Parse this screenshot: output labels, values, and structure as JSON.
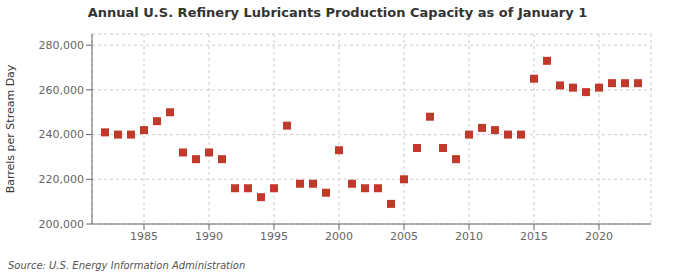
{
  "chart_data": {
    "type": "scatter",
    "title": "Annual U.S. Refinery Lubricants Production Capacity as of January 1",
    "ylabel": "Barrels per Stream Day",
    "annotations": [
      "Source: U.S. Energy Information Administration"
    ],
    "x": [
      1982,
      1983,
      1984,
      1985,
      1986,
      1987,
      1988,
      1989,
      1990,
      1991,
      1992,
      1993,
      1994,
      1995,
      1996,
      1997,
      1998,
      1999,
      2000,
      2001,
      2002,
      2003,
      2004,
      2005,
      2006,
      2007,
      2008,
      2009,
      2010,
      2011,
      2012,
      2013,
      2014,
      2015,
      2016,
      2017,
      2018,
      2019,
      2020,
      2021,
      2022,
      2023
    ],
    "values": [
      241000,
      240000,
      240000,
      242000,
      246000,
      250000,
      232000,
      229000,
      232000,
      229000,
      216000,
      216000,
      212000,
      216000,
      244000,
      218000,
      218000,
      214000,
      233000,
      218000,
      216000,
      216000,
      209000,
      220000,
      234000,
      248000,
      234000,
      229000,
      240000,
      243000,
      242000,
      240000,
      240000,
      265000,
      273000,
      262000,
      261000,
      259000,
      261000,
      263000,
      263000,
      263000
    ],
    "color": "#c0392b",
    "marker": "square",
    "xlim": [
      1981,
      2024
    ],
    "xticks": [
      1985,
      1990,
      1995,
      2000,
      2005,
      2010,
      2015,
      2020
    ],
    "ylim": [
      200000,
      285000
    ],
    "yticks": [
      {
        "value": 200000,
        "label": "200,000"
      },
      {
        "value": 220000,
        "label": "220,000"
      },
      {
        "value": 240000,
        "label": "240,000"
      },
      {
        "value": 260000,
        "label": "260,000"
      },
      {
        "value": 280000,
        "label": "280,000"
      }
    ],
    "grid": true
  }
}
